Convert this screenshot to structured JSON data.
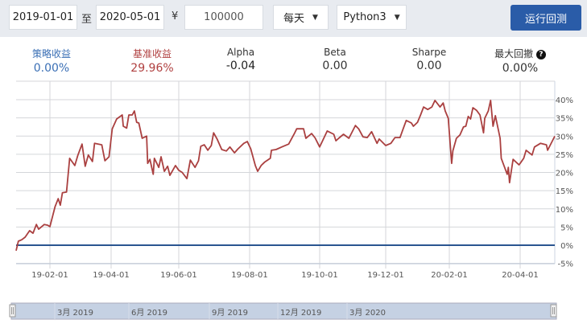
{
  "toolbar": {
    "start_date": "2019-01-01",
    "to_label": "至",
    "end_date": "2020-05-01",
    "currency_symbol": "¥",
    "capital": "100000",
    "frequency": "每天",
    "language": "Python3",
    "run_button": "运行回测"
  },
  "stats": [
    {
      "label": "策略收益",
      "value": "0.00%",
      "color": "#3a6fb5"
    },
    {
      "label": "基准收益",
      "value": "29.96%",
      "color": "#b04040"
    },
    {
      "label": "Alpha",
      "value": "-0.04",
      "color": "#222"
    },
    {
      "label": "Beta",
      "value": "0.00",
      "color": "#333"
    },
    {
      "label": "Sharpe",
      "value": "0.00",
      "color": "#333"
    },
    {
      "label": "最大回撤",
      "value": "0.00%",
      "color": "#333",
      "help_icon": "question-circle-icon"
    }
  ],
  "chart_data": {
    "type": "line",
    "ylim": [
      -5,
      45
    ],
    "y_ticks": [
      "-5%",
      "0%",
      "5%",
      "10%",
      "15%",
      "20%",
      "25%",
      "30%",
      "35%",
      "40%"
    ],
    "x_ticks": [
      "19-02-01",
      "19-04-01",
      "19-06-01",
      "19-08-01",
      "19-10-01",
      "19-12-01",
      "20-02-01",
      "20-04-01"
    ],
    "grid": true,
    "navigator_labels": [
      "3月 2019",
      "6月 2019",
      "9月 2019",
      "12月 2019",
      "3月 2020"
    ],
    "series": [
      {
        "key": "strategy",
        "color": "#2a5590",
        "values": [
          [
            "2019-01-02",
            0
          ],
          [
            "2020-04-30",
            0
          ]
        ]
      },
      {
        "key": "benchmark",
        "color": "#aa4040",
        "values": [
          [
            "2019-01-02",
            -1.5
          ],
          [
            "2019-01-04",
            1.1
          ],
          [
            "2019-01-07",
            1.5
          ],
          [
            "2019-01-10",
            2.2
          ],
          [
            "2019-01-14",
            4
          ],
          [
            "2019-01-17",
            3.3
          ],
          [
            "2019-01-20",
            5.7
          ],
          [
            "2019-01-22",
            4.4
          ],
          [
            "2019-01-27",
            5.7
          ],
          [
            "2019-01-30",
            5.5
          ],
          [
            "2019-02-01",
            5.1
          ],
          [
            "2019-02-06",
            10.6
          ],
          [
            "2019-02-09",
            12.8
          ],
          [
            "2019-02-11",
            11
          ],
          [
            "2019-02-13",
            14.4
          ],
          [
            "2019-02-17",
            14.6
          ],
          [
            "2019-02-20",
            23.9
          ],
          [
            "2019-02-25",
            21.9
          ],
          [
            "2019-02-28",
            24.8
          ],
          [
            "2019-03-04",
            27.8
          ],
          [
            "2019-03-07",
            21.7
          ],
          [
            "2019-03-10",
            24.8
          ],
          [
            "2019-03-14",
            23
          ],
          [
            "2019-03-16",
            28
          ],
          [
            "2019-03-23",
            27.6
          ],
          [
            "2019-03-26",
            23.2
          ],
          [
            "2019-03-30",
            24.3
          ],
          [
            "2019-04-02",
            32
          ],
          [
            "2019-04-06",
            34.7
          ],
          [
            "2019-04-11",
            35.8
          ],
          [
            "2019-04-12",
            32.7
          ],
          [
            "2019-04-15",
            32.2
          ],
          [
            "2019-04-17",
            35.8
          ],
          [
            "2019-04-20",
            35.8
          ],
          [
            "2019-04-22",
            36.9
          ],
          [
            "2019-04-24",
            33.8
          ],
          [
            "2019-04-26",
            33.6
          ],
          [
            "2019-04-29",
            29.4
          ],
          [
            "2019-05-03",
            30
          ],
          [
            "2019-05-04",
            22.5
          ],
          [
            "2019-05-06",
            23.6
          ],
          [
            "2019-05-09",
            19.5
          ],
          [
            "2019-05-10",
            23.9
          ],
          [
            "2019-05-14",
            21.4
          ],
          [
            "2019-05-16",
            24.3
          ],
          [
            "2019-05-19",
            20.3
          ],
          [
            "2019-05-22",
            21.7
          ],
          [
            "2019-05-24",
            19.2
          ],
          [
            "2019-05-29",
            21.9
          ],
          [
            "2019-06-01",
            20.6
          ],
          [
            "2019-06-04",
            20
          ],
          [
            "2019-06-08",
            18.3
          ],
          [
            "2019-06-11",
            23.4
          ],
          [
            "2019-06-15",
            21.4
          ],
          [
            "2019-06-18",
            23.2
          ],
          [
            "2019-06-20",
            27.2
          ],
          [
            "2019-06-23",
            27.6
          ],
          [
            "2019-06-26",
            26.1
          ],
          [
            "2019-06-29",
            27.4
          ],
          [
            "2019-07-01",
            30.9
          ],
          [
            "2019-07-04",
            29.2
          ],
          [
            "2019-07-08",
            26.3
          ],
          [
            "2019-07-12",
            25.9
          ],
          [
            "2019-07-15",
            27
          ],
          [
            "2019-07-19",
            25.4
          ],
          [
            "2019-07-22",
            26.5
          ],
          [
            "2019-07-27",
            28
          ],
          [
            "2019-07-30",
            28.5
          ],
          [
            "2019-08-02",
            26.5
          ],
          [
            "2019-08-06",
            21.9
          ],
          [
            "2019-08-08",
            20.3
          ],
          [
            "2019-08-11",
            21.9
          ],
          [
            "2019-08-14",
            22.8
          ],
          [
            "2019-08-19",
            23.9
          ],
          [
            "2019-08-20",
            26.1
          ],
          [
            "2019-08-24",
            26.3
          ],
          [
            "2019-08-29",
            27
          ],
          [
            "2019-09-04",
            27.8
          ],
          [
            "2019-09-09",
            30.7
          ],
          [
            "2019-09-11",
            32
          ],
          [
            "2019-09-17",
            32
          ],
          [
            "2019-09-19",
            29.4
          ],
          [
            "2019-09-24",
            30.7
          ],
          [
            "2019-09-27",
            29.5
          ],
          [
            "2019-10-01",
            27
          ],
          [
            "2019-10-08",
            31.4
          ],
          [
            "2019-10-14",
            30.5
          ],
          [
            "2019-10-16",
            28.7
          ],
          [
            "2019-10-19",
            29.5
          ],
          [
            "2019-10-23",
            30.5
          ],
          [
            "2019-10-28",
            29.4
          ],
          [
            "2019-11-03",
            32.9
          ],
          [
            "2019-11-06",
            32
          ],
          [
            "2019-11-10",
            29.8
          ],
          [
            "2019-11-14",
            29.6
          ],
          [
            "2019-11-18",
            31.2
          ],
          [
            "2019-11-23",
            28
          ],
          [
            "2019-11-25",
            29.2
          ],
          [
            "2019-12-01",
            27.4
          ],
          [
            "2019-12-06",
            28
          ],
          [
            "2019-12-10",
            29.6
          ],
          [
            "2019-12-15",
            29.6
          ],
          [
            "2019-12-18",
            32
          ],
          [
            "2019-12-21",
            34.3
          ],
          [
            "2019-12-26",
            33.6
          ],
          [
            "2019-12-28",
            32.7
          ],
          [
            "2020-01-01",
            33.8
          ],
          [
            "2020-01-04",
            35.8
          ],
          [
            "2020-01-07",
            38
          ],
          [
            "2020-01-11",
            37.3
          ],
          [
            "2020-01-15",
            38
          ],
          [
            "2020-01-18",
            39.8
          ],
          [
            "2020-01-23",
            38
          ],
          [
            "2020-01-26",
            39.1
          ],
          [
            "2020-01-28",
            36.9
          ],
          [
            "2020-01-31",
            34.9
          ],
          [
            "2020-02-03",
            22.5
          ],
          [
            "2020-02-04",
            25.9
          ],
          [
            "2020-02-07",
            29.4
          ],
          [
            "2020-02-10",
            30.3
          ],
          [
            "2020-02-13",
            32.5
          ],
          [
            "2020-02-15",
            32.7
          ],
          [
            "2020-02-17",
            35.4
          ],
          [
            "2020-02-19",
            34.7
          ],
          [
            "2020-02-21",
            37.8
          ],
          [
            "2020-02-24",
            37.1
          ],
          [
            "2020-02-27",
            35.8
          ],
          [
            "2020-03-01",
            30.9
          ],
          [
            "2020-03-02",
            34.9
          ],
          [
            "2020-03-05",
            36.9
          ],
          [
            "2020-03-07",
            39.8
          ],
          [
            "2020-03-09",
            32.7
          ],
          [
            "2020-03-11",
            35.6
          ],
          [
            "2020-03-15",
            29.4
          ],
          [
            "2020-03-16",
            23.9
          ],
          [
            "2020-03-21",
            19.5
          ],
          [
            "2020-03-22",
            21.4
          ],
          [
            "2020-03-23",
            17.2
          ],
          [
            "2020-03-26",
            23.6
          ],
          [
            "2020-03-31",
            22.1
          ],
          [
            "2020-04-01",
            22.5
          ],
          [
            "2020-04-04",
            23.9
          ],
          [
            "2020-04-06",
            26.1
          ],
          [
            "2020-04-11",
            24.8
          ],
          [
            "2020-04-13",
            27
          ],
          [
            "2020-04-18",
            28
          ],
          [
            "2020-04-23",
            27.6
          ],
          [
            "2020-04-24",
            26.1
          ],
          [
            "2020-04-30",
            29.96
          ]
        ]
      }
    ]
  }
}
